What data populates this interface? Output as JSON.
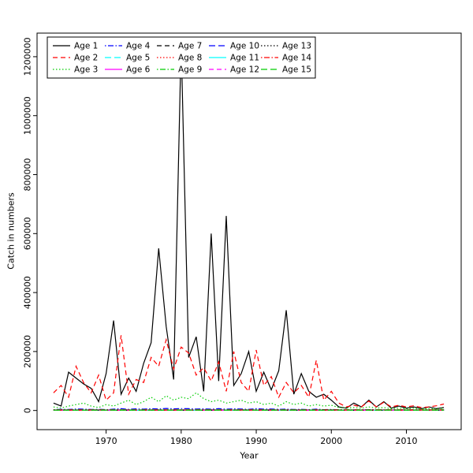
{
  "chart_data": {
    "type": "line",
    "title": "",
    "xlabel": "Year",
    "ylabel": "Catch in numbers",
    "xlim": [
      1963,
      2015
    ],
    "ylim": [
      0,
      1250000
    ],
    "x_ticks": [
      1970,
      1980,
      1990,
      2000,
      2010
    ],
    "y_ticks": [
      0,
      200000,
      400000,
      600000,
      800000,
      1000000,
      1200000
    ],
    "grid": false,
    "legend_position": "top-left",
    "legend_columns": 5,
    "years": [
      1963,
      1964,
      1965,
      1966,
      1967,
      1968,
      1969,
      1970,
      1971,
      1972,
      1973,
      1974,
      1975,
      1976,
      1977,
      1978,
      1979,
      1980,
      1981,
      1982,
      1983,
      1984,
      1985,
      1986,
      1987,
      1988,
      1989,
      1990,
      1991,
      1992,
      1993,
      1994,
      1995,
      1996,
      1997,
      1998,
      1999,
      2000,
      2001,
      2002,
      2003,
      2004,
      2005,
      2006,
      2007,
      2008,
      2009,
      2010,
      2011,
      2012,
      2013,
      2014,
      2015
    ],
    "series": [
      {
        "name": "Age 1",
        "color": "#000000",
        "style": "solid",
        "values": [
          25000,
          15000,
          130000,
          110000,
          90000,
          75000,
          30000,
          125000,
          305000,
          55000,
          110000,
          65000,
          160000,
          230000,
          550000,
          285000,
          105000,
          1250000,
          180000,
          250000,
          65000,
          600000,
          100000,
          660000,
          85000,
          125000,
          200000,
          65000,
          130000,
          70000,
          135000,
          340000,
          55000,
          125000,
          65000,
          45000,
          55000,
          35000,
          12000,
          8000,
          25000,
          12000,
          35000,
          12000,
          30000,
          8000,
          15000,
          8000,
          12000,
          6000,
          12000,
          6000,
          10000
        ]
      },
      {
        "name": "Age 2",
        "color": "#ff0000",
        "style": "dashed",
        "values": [
          60000,
          85000,
          45000,
          150000,
          95000,
          60000,
          120000,
          35000,
          60000,
          255000,
          55000,
          105000,
          95000,
          180000,
          150000,
          240000,
          140000,
          215000,
          195000,
          120000,
          145000,
          100000,
          165000,
          65000,
          200000,
          95000,
          65000,
          205000,
          85000,
          115000,
          45000,
          95000,
          60000,
          85000,
          45000,
          170000,
          35000,
          65000,
          25000,
          12000,
          18000,
          12000,
          32000,
          12000,
          28000,
          12000,
          18000,
          12000,
          16000,
          10000,
          12000,
          16000,
          22000
        ]
      },
      {
        "name": "Age 3",
        "color": "#00cd00",
        "style": "dotted",
        "values": [
          12000,
          8000,
          15000,
          20000,
          25000,
          15000,
          10000,
          20000,
          15000,
          25000,
          35000,
          20000,
          30000,
          45000,
          30000,
          50000,
          35000,
          45000,
          40000,
          60000,
          40000,
          30000,
          35000,
          25000,
          30000,
          35000,
          25000,
          30000,
          20000,
          25000,
          15000,
          30000,
          20000,
          25000,
          15000,
          20000,
          15000,
          18000,
          10000,
          8000,
          10000,
          8000,
          12000,
          8000,
          10000,
          6000,
          8000,
          6000,
          8000,
          5000,
          6000,
          5000,
          8000
        ]
      },
      {
        "name": "Age 4",
        "color": "#0000ff",
        "style": "dotdash",
        "values": [
          3000,
          4000,
          3500,
          5000,
          4500,
          3500,
          4000,
          3000,
          4500,
          6000,
          4000,
          5500,
          4500,
          6000,
          5000,
          7000,
          5500,
          6500,
          6000,
          5000,
          5500,
          4500,
          6000,
          4500,
          5500,
          5000,
          4000,
          6000,
          4500,
          5000,
          4000,
          4500,
          3500,
          4000,
          3000,
          4500,
          3000,
          3500,
          2500,
          2200,
          2400,
          2000,
          2800,
          2200,
          2500,
          1800,
          2200,
          1800,
          2000,
          1600,
          1800,
          1500,
          2000
        ]
      },
      {
        "name": "Age 5",
        "color": "#00ffff",
        "style": "longdash",
        "constant": 1500
      },
      {
        "name": "Age 6",
        "color": "#ff00ff",
        "style": "solid",
        "constant": 1200
      },
      {
        "name": "Age 7",
        "color": "#000000",
        "style": "dashed",
        "constant": 1800
      },
      {
        "name": "Age 8",
        "color": "#ff0000",
        "style": "dotted",
        "constant": 2500
      },
      {
        "name": "Age 9",
        "color": "#00cd00",
        "style": "dotdash",
        "constant": 2000
      },
      {
        "name": "Age 10",
        "color": "#0000ff",
        "style": "longdash",
        "constant": 1000
      },
      {
        "name": "Age 11",
        "color": "#00ffff",
        "style": "solid",
        "constant": 800
      },
      {
        "name": "Age 12",
        "color": "#ff00ff",
        "style": "dashed",
        "constant": 700
      },
      {
        "name": "Age 13",
        "color": "#000000",
        "style": "dotted",
        "constant": 900
      },
      {
        "name": "Age 14",
        "color": "#ff0000",
        "style": "dotdash",
        "constant": 1500
      },
      {
        "name": "Age 15",
        "color": "#00cd00",
        "style": "longdash",
        "constant": 1000
      }
    ],
    "axis_color": "#000000"
  }
}
